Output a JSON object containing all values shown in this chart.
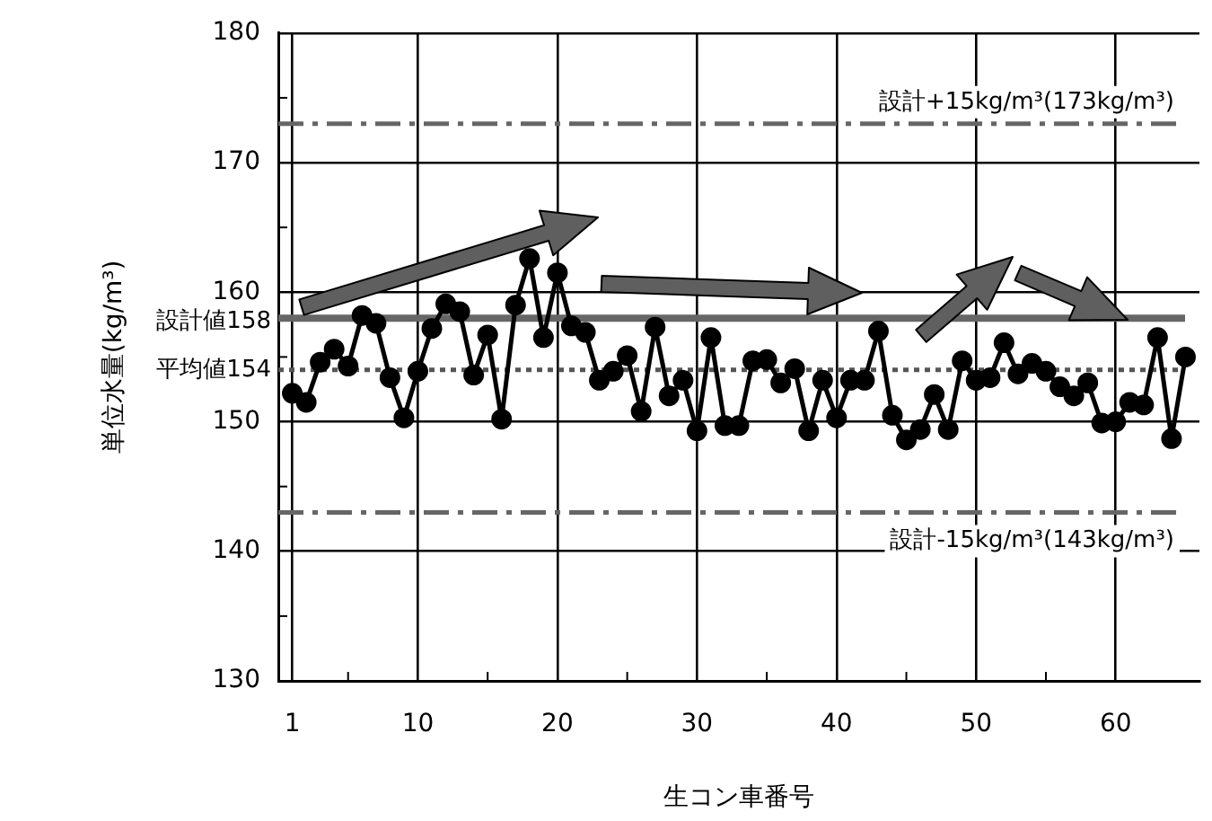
{
  "chart_data": {
    "type": "line",
    "xlabel": "生コン車番号",
    "ylabel": "単位水量(kg/m³)",
    "x": [
      1,
      2,
      3,
      4,
      5,
      6,
      7,
      8,
      9,
      10,
      11,
      12,
      13,
      14,
      15,
      16,
      17,
      18,
      19,
      20,
      21,
      22,
      23,
      24,
      25,
      26,
      27,
      28,
      29,
      30,
      31,
      32,
      33,
      34,
      35,
      36,
      37,
      38,
      39,
      40,
      41,
      42,
      43,
      44,
      45,
      46,
      47,
      48,
      49,
      50,
      51,
      52,
      53,
      54,
      55,
      56,
      57,
      58,
      59,
      60,
      61,
      62,
      63,
      64,
      65
    ],
    "series": [
      {
        "color": "#000000",
        "values": [
          152.2,
          151.5,
          154.6,
          155.6,
          154.3,
          158.2,
          157.6,
          153.4,
          150.3,
          153.9,
          157.2,
          159.1,
          158.5,
          153.6,
          156.7,
          150.2,
          159.0,
          162.6,
          156.5,
          161.5,
          157.4,
          156.9,
          153.2,
          153.9,
          155.1,
          150.8,
          157.3,
          152.0,
          153.2,
          149.3,
          156.5,
          149.7,
          149.7,
          154.7,
          154.8,
          153.0,
          154.1,
          149.3,
          153.2,
          150.3,
          153.2,
          153.2,
          157.0,
          150.5,
          148.6,
          149.4,
          152.1,
          149.4,
          154.7,
          153.2,
          153.4,
          156.1,
          153.7,
          154.5,
          153.9,
          152.7,
          152.0,
          153.0,
          149.9,
          150.0,
          151.5,
          151.3,
          156.5,
          148.7,
          155.0
        ]
      }
    ],
    "xlim": [
      0,
      66
    ],
    "xticks": [
      {
        "value": 1,
        "label": "1"
      },
      {
        "value": 5,
        "label": null
      },
      10,
      {
        "value": 15,
        "label": null
      },
      20,
      {
        "value": 25,
        "label": null
      },
      30,
      {
        "value": 35,
        "label": null
      },
      40,
      {
        "value": 45,
        "label": null
      },
      50,
      {
        "value": 55,
        "label": null
      },
      60
    ],
    "ylim": [
      130,
      180
    ],
    "yticks": [
      130,
      {
        "value": 135,
        "label": null
      },
      140,
      {
        "value": 145,
        "label": null
      },
      150,
      {
        "value": 155,
        "label": null
      },
      160,
      {
        "value": 165,
        "label": null
      },
      170,
      {
        "value": 175,
        "label": null
      },
      180
    ],
    "grid": true,
    "marker": "circle",
    "line_style": "solid",
    "legend": false,
    "ref_lines": [
      {
        "axis": "y",
        "value": 173,
        "label": "設計+15kg/m³(173kg/m³)",
        "color": "#666666",
        "line_style": "dashed"
      },
      {
        "axis": "y",
        "value": 158,
        "label": "設計値158",
        "color": "#666666",
        "line_style": "solid"
      },
      {
        "axis": "y",
        "value": 154,
        "label": "平均値154",
        "color": "#555555",
        "line_style": "dotted"
      },
      {
        "axis": "y",
        "value": 143,
        "label": "設計-15kg/m³(143kg/m³)",
        "color": "#666666",
        "line_style": "dashed"
      }
    ]
  }
}
